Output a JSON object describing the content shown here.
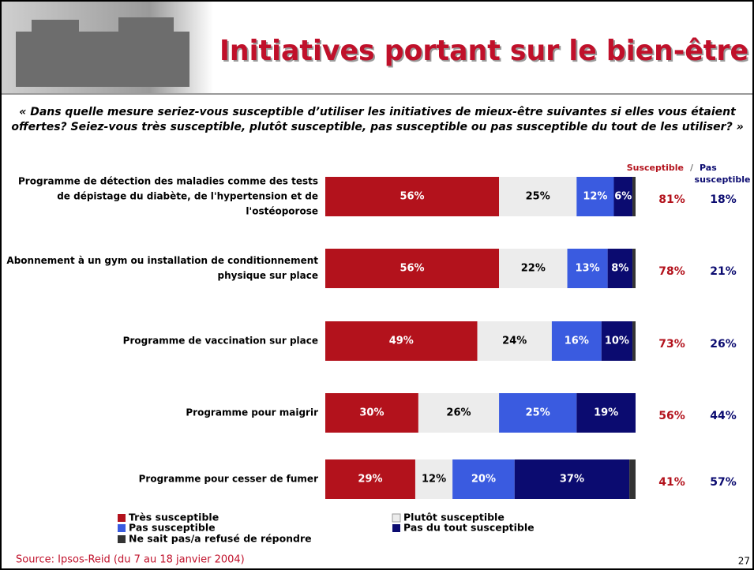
{
  "chart_data": {
    "type": "stacked-bar-horizontal",
    "title": "Initiatives portant sur le bien-être",
    "subtitle": "« Dans quelle mesure seriez-vous susceptible d’utiliser les initiatives de mieux-être suivantes si elles vous étaient offertes? Seiez-vous très susceptible, plutôt susceptible, pas susceptible ou pas susceptible du tout de les utiliser? »",
    "categories": [
      "Programme de détection des maladies comme des tests de dépistage du diabète, de l'hypertension et de l'ostéoporose",
      "Abonnement à un gym ou installation de conditionnement physique sur place",
      "Programme de vaccination sur place",
      "Programme pour maigrir",
      "Programme pour cesser de fumer"
    ],
    "xlim": [
      0,
      100
    ],
    "series": [
      {
        "name": "Très susceptible",
        "color": "#b3121c",
        "values": [
          56,
          56,
          49,
          30,
          29
        ],
        "value_labels": [
          "56%",
          "56%",
          "49%",
          "30%",
          "29%"
        ]
      },
      {
        "name": "Plutôt susceptible",
        "color": "#ececec",
        "values": [
          25,
          22,
          24,
          26,
          12
        ],
        "value_labels": [
          "25%",
          "22%",
          "24%",
          "26%",
          "12%"
        ]
      },
      {
        "name": "Pas susceptible",
        "color": "#3a5be0",
        "values": [
          12,
          13,
          16,
          25,
          20
        ],
        "value_labels": [
          "12%",
          "13%",
          "16%",
          "25%",
          "20%"
        ]
      },
      {
        "name": "Pas du tout susceptible",
        "color": "#0b0b70",
        "values": [
          6,
          8,
          10,
          19,
          37
        ],
        "value_labels": [
          "6%",
          "8%",
          "10%",
          "19%",
          "37%"
        ]
      },
      {
        "name": "Ne sait pas/a refusé de répondre",
        "color": "#333333",
        "values": [
          1,
          1,
          1,
          0,
          2
        ]
      }
    ],
    "totals": {
      "separator": "/",
      "columns": [
        {
          "name": "Susceptible",
          "color": "#b3121c",
          "values": [
            81,
            78,
            73,
            56,
            41
          ],
          "value_labels": [
            "81%",
            "78%",
            "73%",
            "56%",
            "41%"
          ]
        },
        {
          "name": "Pas susceptible",
          "color": "#0b0b70",
          "values": [
            18,
            21,
            26,
            44,
            57
          ],
          "value_labels": [
            "18%",
            "21%",
            "26%",
            "44%",
            "57%"
          ]
        }
      ]
    },
    "source": "Source: Ipsos-Reid (du 7 au 18 janvier 2004)",
    "page_number": "27"
  }
}
